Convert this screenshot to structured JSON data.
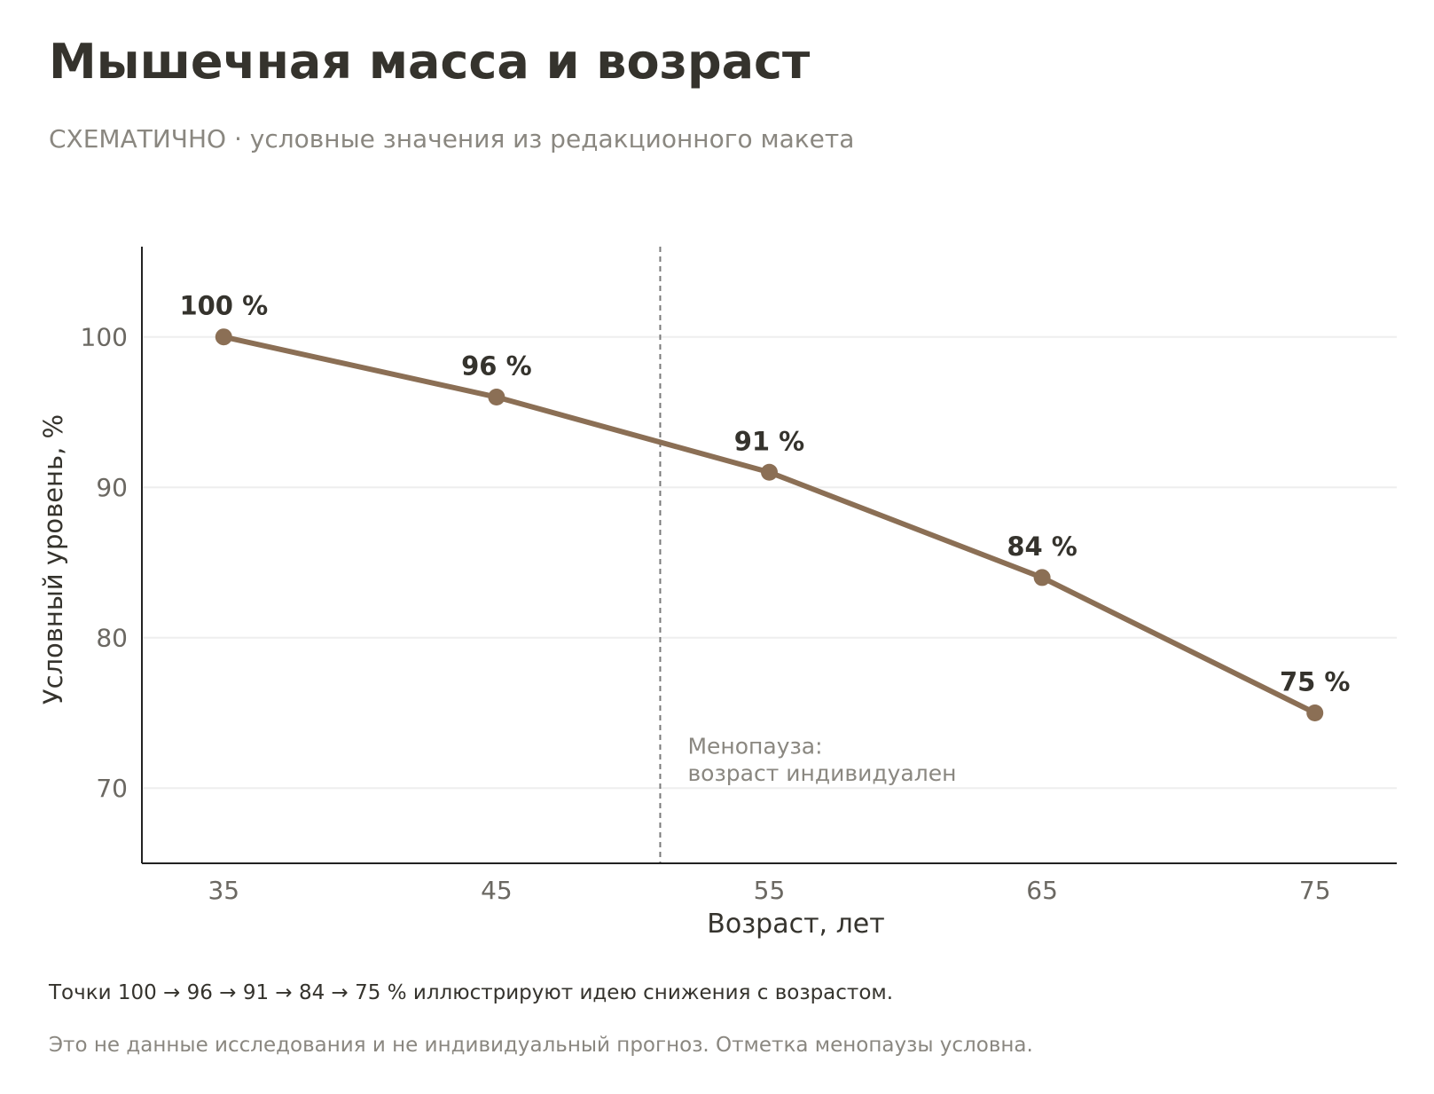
{
  "header": {
    "title": "Мышечная масса и возраст",
    "subtitle": "СХЕМАТИЧНО · условные значения из редакционного макета"
  },
  "footer": {
    "note_primary": "Точки 100 → 96 → 91 → 84 → 75 % иллюстрируют идею снижения с возрастом.",
    "note_secondary": "Это не данные исследования и не индивидуальный прогноз. Отметка менопаузы условна."
  },
  "colors": {
    "line": "#8b6f55",
    "title": "#35332d",
    "muted": "#8a8780",
    "tick": "#6b6862",
    "grid": "#eeeeee",
    "axis": "#222222",
    "marker_line": "#7a7a7a"
  },
  "chart_data": {
    "type": "line",
    "x": [
      35,
      45,
      55,
      65,
      75
    ],
    "series": [
      {
        "values": [
          100,
          96,
          91,
          84,
          75
        ]
      }
    ],
    "data_labels": [
      "100 %",
      "96 %",
      "91 %",
      "84 %",
      "75 %"
    ],
    "xlabel": "Возраст, лет",
    "ylabel": "Условный уровень, %",
    "xticks": [
      35,
      45,
      55,
      65,
      75
    ],
    "yticks": [
      70,
      80,
      90,
      100
    ],
    "xlim": [
      32,
      78
    ],
    "ylim": [
      65,
      106
    ],
    "grid": "horizontal",
    "reference_line": {
      "x": 51,
      "style": "dashed",
      "label_lines": [
        "Менопауза:",
        "возраст индивидуален"
      ]
    }
  }
}
